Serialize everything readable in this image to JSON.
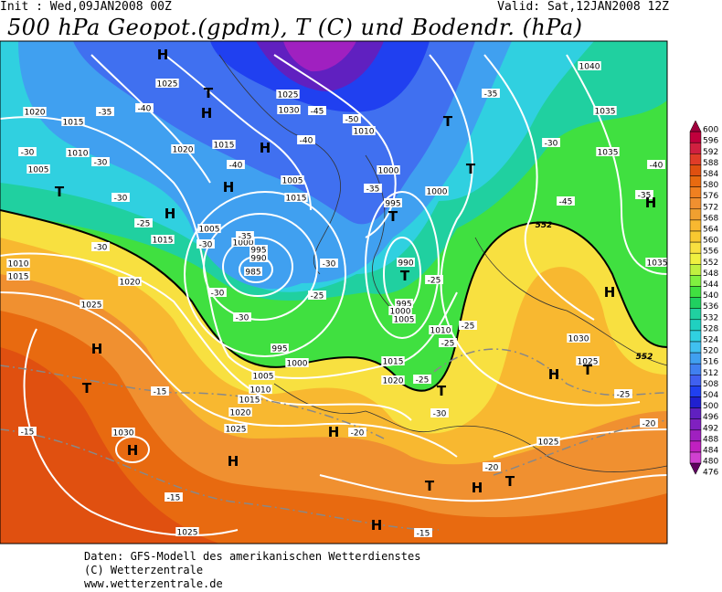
{
  "header": {
    "init": "Init : Wed,09JAN2008 00Z",
    "valid": "Valid: Sat,12JAN2008 12Z",
    "title": "500 hPa Geopot.(gpdm), T (C) und Bodendr. (hPa)"
  },
  "colorbar": {
    "levels": [
      "600",
      "596",
      "592",
      "588",
      "584",
      "580",
      "576",
      "572",
      "568",
      "564",
      "560",
      "556",
      "552",
      "548",
      "544",
      "540",
      "536",
      "532",
      "528",
      "524",
      "520",
      "516",
      "512",
      "508",
      "504",
      "500",
      "496",
      "492",
      "488",
      "484",
      "480",
      "476"
    ],
    "colors": [
      "#a0003c",
      "#c0003c",
      "#d02040",
      "#e03c28",
      "#e05010",
      "#e86a10",
      "#f08020",
      "#f09030",
      "#f0a030",
      "#f8b830",
      "#f8c830",
      "#f8e040",
      "#f0f040",
      "#c0f040",
      "#80f040",
      "#40e040",
      "#20d060",
      "#20d0a0",
      "#20d0c0",
      "#30d0e0",
      "#40c0f0",
      "#40a0f0",
      "#4080f0",
      "#4060f0",
      "#2040f0",
      "#2020d0",
      "#6020c0",
      "#8020c0",
      "#a020c0",
      "#c020c0",
      "#d040d0",
      "#600060"
    ]
  },
  "map_labels": [
    "H",
    "1025",
    "T",
    "H",
    "1020",
    "-35",
    "-40",
    "1015",
    "1025",
    "1030",
    "-45",
    "-50",
    "1010",
    "T",
    "-35",
    "1040",
    "1035",
    "-30",
    "1010",
    "-30",
    "1005",
    "T",
    "H",
    "-40",
    "1020",
    "1015",
    "-40",
    "1005",
    "H",
    "T",
    "-30",
    "1035",
    "-40",
    "1000",
    "-35",
    "1015",
    "1000",
    "-35",
    "H",
    "-30",
    "H",
    "995",
    "T",
    "-45",
    "1015",
    "-25",
    "1005",
    "1000",
    "995",
    "990",
    "985",
    "-30",
    "-35",
    "1010",
    "1015",
    "1020",
    "-30",
    "990",
    "T",
    "-25",
    "-30",
    "1025",
    "-30",
    "-25",
    "995",
    "1000",
    "1005",
    "-30",
    "1035",
    "H",
    "1010",
    "-25",
    "-25",
    "995",
    "1000",
    "1030",
    "H",
    "1025",
    "T",
    "H",
    "-25",
    "1005",
    "1010",
    "1015",
    "1020",
    "-25",
    "1015",
    "T",
    "-15",
    "T",
    "1020",
    "-30",
    "-20",
    "1025",
    "H",
    "-20",
    "1030",
    "H",
    "-15",
    "H",
    "1025",
    "-20",
    "T",
    "H",
    "T",
    "-15",
    "H",
    "-15",
    "1025",
    "552",
    "552"
  ],
  "footer": [
    "Daten: GFS-Modell des amerikanischen Wetterdienstes",
    "(C) Wetterzentrale",
    "www.wetterzentrale.de"
  ]
}
